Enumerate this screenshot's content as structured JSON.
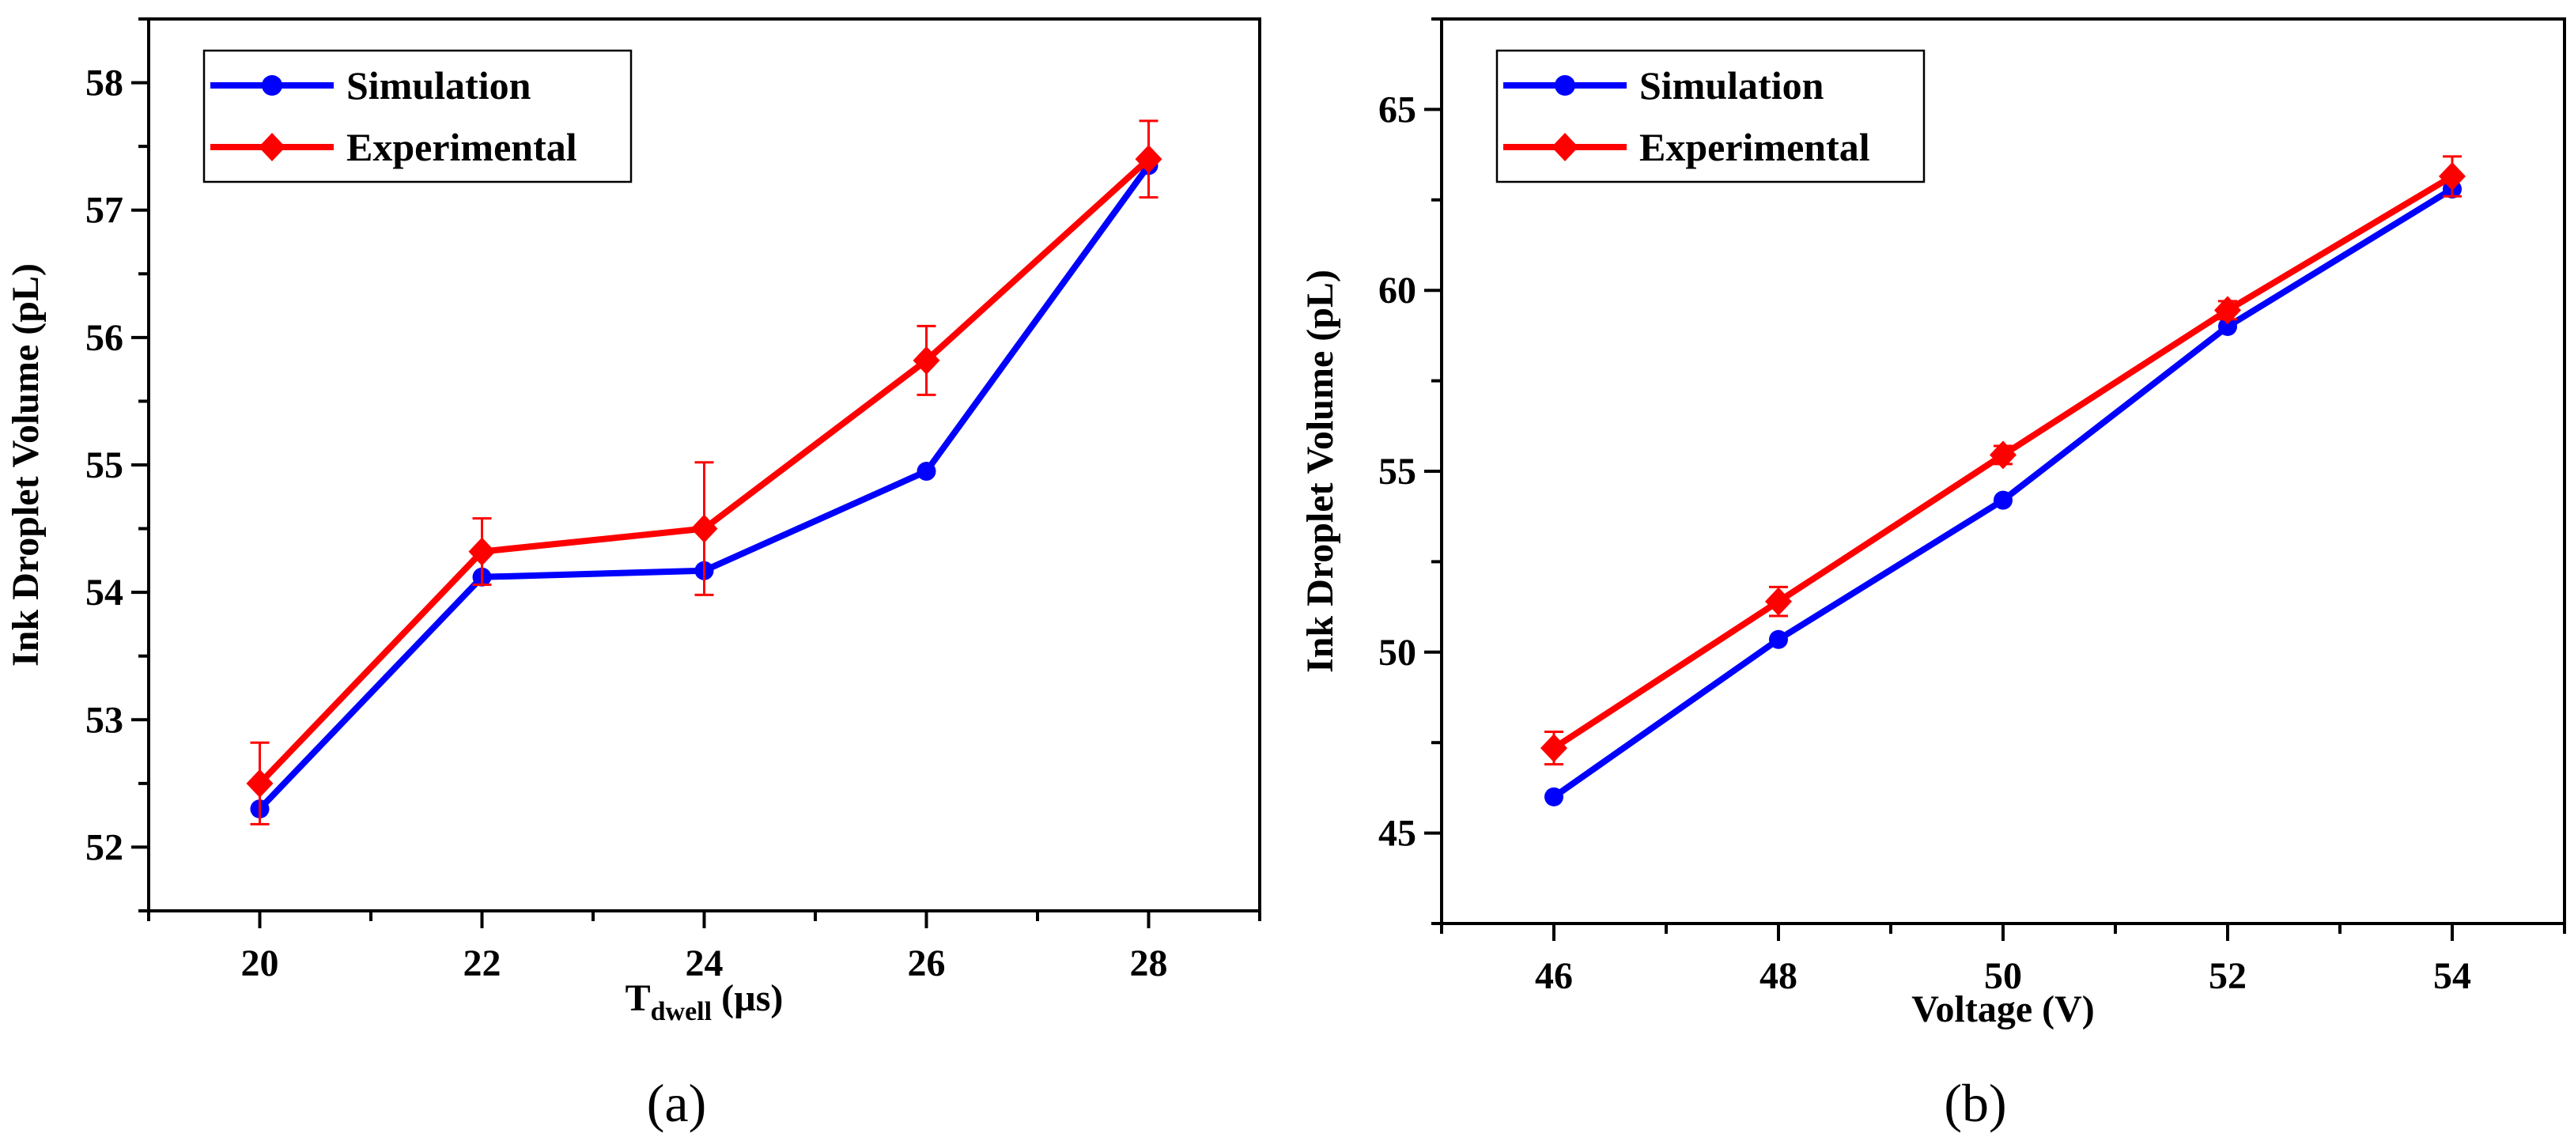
{
  "colors": {
    "simulation": "#0000ff",
    "experimental": "#ff0000",
    "axis": "#000000"
  },
  "chart_data": [
    {
      "type": "line",
      "panel_label": "(a)",
      "xlabel": "T",
      "xlabel_sub": "dwell",
      "xlabel_unit": " (µs)",
      "ylabel": "Ink Droplet Volume (pL)",
      "xlim": [
        19,
        29
      ],
      "ylim": [
        51.5,
        58.5
      ],
      "xticks": [
        20,
        22,
        24,
        26,
        28
      ],
      "xtick_labels": [
        "20",
        "22",
        "24",
        "26",
        "28"
      ],
      "yticks": [
        52,
        53,
        54,
        55,
        56,
        57,
        58
      ],
      "ytick_labels": [
        "52",
        "53",
        "54",
        "55",
        "56",
        "57",
        "58"
      ],
      "legend_position": "top-left",
      "series": [
        {
          "name": "Simulation",
          "marker": "circle",
          "x": [
            20,
            22,
            24,
            26,
            28
          ],
          "y": [
            52.3,
            54.12,
            54.17,
            54.95,
            57.35
          ]
        },
        {
          "name": "Experimental",
          "marker": "diamond",
          "x": [
            20,
            22,
            24,
            26,
            28
          ],
          "y": [
            52.5,
            54.32,
            54.5,
            55.82,
            57.4
          ],
          "error": [
            0.32,
            0.26,
            0.52,
            0.27,
            0.3
          ]
        }
      ]
    },
    {
      "type": "line",
      "panel_label": "(b)",
      "xlabel": "Voltage (V)",
      "xlabel_sub": "",
      "xlabel_unit": "",
      "ylabel": "Ink Droplet Volume (pL)",
      "xlim": [
        45,
        55
      ],
      "ylim": [
        42.5,
        67.5
      ],
      "xticks": [
        46,
        48,
        50,
        52,
        54
      ],
      "xtick_labels": [
        "46",
        "48",
        "50",
        "52",
        "54"
      ],
      "yticks": [
        45,
        50,
        55,
        60,
        65
      ],
      "ytick_labels": [
        "45",
        "50",
        "55",
        "60",
        "65"
      ],
      "legend_position": "top-left",
      "series": [
        {
          "name": "Simulation",
          "marker": "circle",
          "x": [
            46,
            48,
            50,
            52,
            54
          ],
          "y": [
            46.0,
            50.35,
            54.2,
            59.0,
            62.8
          ]
        },
        {
          "name": "Experimental",
          "marker": "diamond",
          "x": [
            46,
            48,
            50,
            52,
            54
          ],
          "y": [
            47.35,
            51.4,
            55.45,
            59.45,
            63.15
          ],
          "error": [
            0.45,
            0.4,
            0.25,
            0.25,
            0.55
          ]
        }
      ]
    }
  ]
}
